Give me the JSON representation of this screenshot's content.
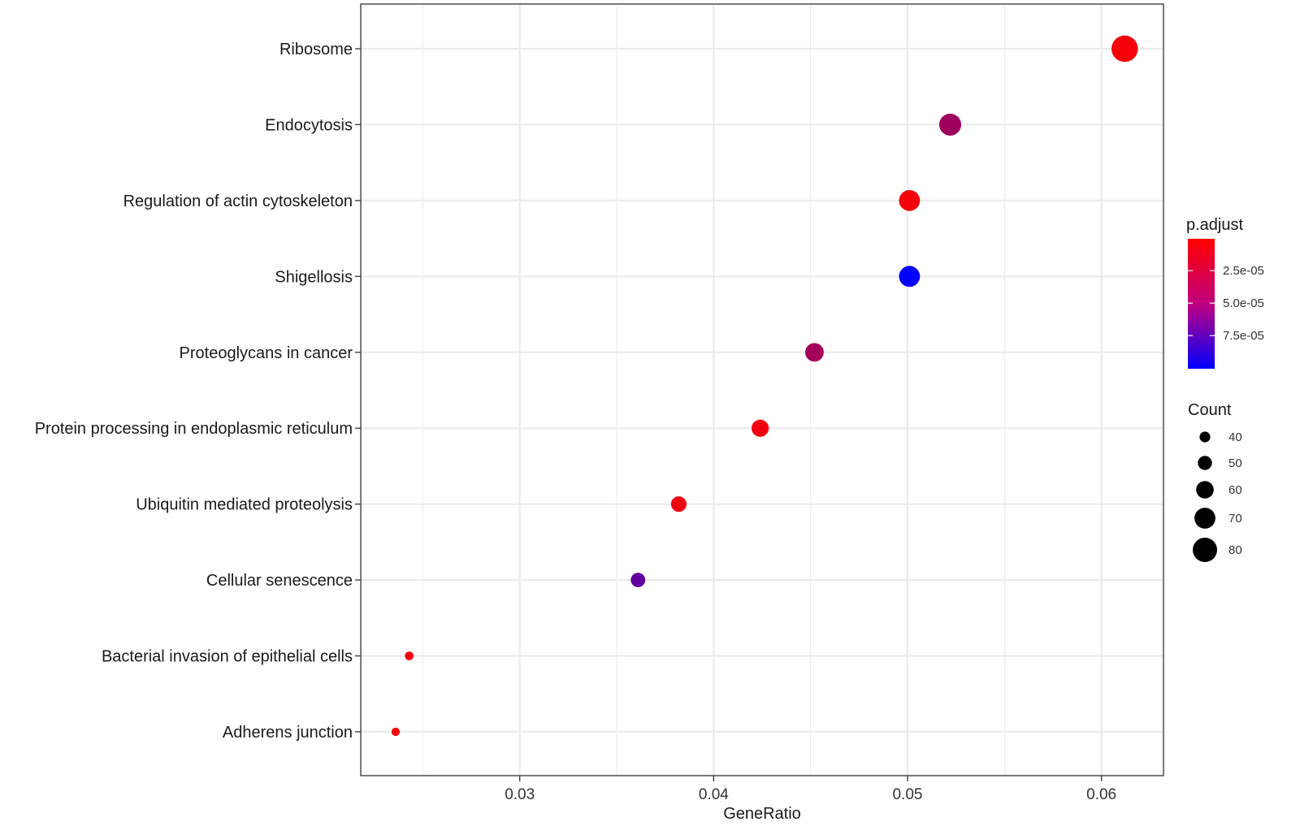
{
  "chart_data": {
    "type": "scatter",
    "title": "",
    "xlabel": "GeneRatio",
    "ylabel": "",
    "xlim": [
      0.0218,
      0.0632
    ],
    "x_ticks": [
      0.03,
      0.04,
      0.05,
      0.06
    ],
    "x_tick_labels": [
      "0.03",
      "0.04",
      "0.05",
      "0.06"
    ],
    "grid": true,
    "categories": [
      "Ribosome",
      "Endocytosis",
      "Regulation of actin cytoskeleton",
      "Shigellosis",
      "Proteoglycans in cancer",
      "Protein processing in endoplasmic reticulum",
      "Ubiquitin mediated proteolysis",
      "Cellular senescence",
      "Bacterial invasion of epithelial cells",
      "Adherens junction"
    ],
    "points": [
      {
        "category": "Ribosome",
        "gene_ratio": 0.0612,
        "count": 86,
        "p_adjust": 4e-06
      },
      {
        "category": "Endocytosis",
        "gene_ratio": 0.0522,
        "count": 73,
        "p_adjust": 3.8e-05
      },
      {
        "category": "Regulation of actin cytoskeleton",
        "gene_ratio": 0.0501,
        "count": 70,
        "p_adjust": 5e-06
      },
      {
        "category": "Shigellosis",
        "gene_ratio": 0.0501,
        "count": 70,
        "p_adjust": 9.95e-05
      },
      {
        "category": "Proteoglycans in cancer",
        "gene_ratio": 0.0452,
        "count": 63,
        "p_adjust": 3.6e-05
      },
      {
        "category": "Protein processing in endoplasmic reticulum",
        "gene_ratio": 0.0424,
        "count": 59,
        "p_adjust": 6e-06
      },
      {
        "category": "Ubiquitin mediated proteolysis",
        "gene_ratio": 0.0382,
        "count": 54,
        "p_adjust": 6e-06
      },
      {
        "category": "Cellular senescence",
        "gene_ratio": 0.0361,
        "count": 51,
        "p_adjust": 6.2e-05
      },
      {
        "category": "Bacterial invasion of epithelial cells",
        "gene_ratio": 0.0243,
        "count": 34,
        "p_adjust": 7e-06
      },
      {
        "category": "Adherens junction",
        "gene_ratio": 0.0236,
        "count": 33,
        "p_adjust": 5e-06
      }
    ],
    "color_legend": {
      "title": "p.adjust",
      "low_color": "#FF0000",
      "high_color": "#0000FF",
      "range": [
        5e-07,
        0.0001005
      ],
      "ticks": [
        2.5e-05,
        5e-05,
        7.5e-05
      ],
      "tick_labels": [
        "2.5e-05",
        "5.0e-05",
        "7.5e-05"
      ]
    },
    "size_legend": {
      "title": "Count",
      "values": [
        40,
        50,
        60,
        70,
        80
      ],
      "labels": [
        "40",
        "50",
        "60",
        "70",
        "80"
      ]
    },
    "legend_position": "right"
  },
  "colors": {
    "panel_border": "#333333",
    "grid": "#ebebeb",
    "point_legend": "#000000"
  }
}
